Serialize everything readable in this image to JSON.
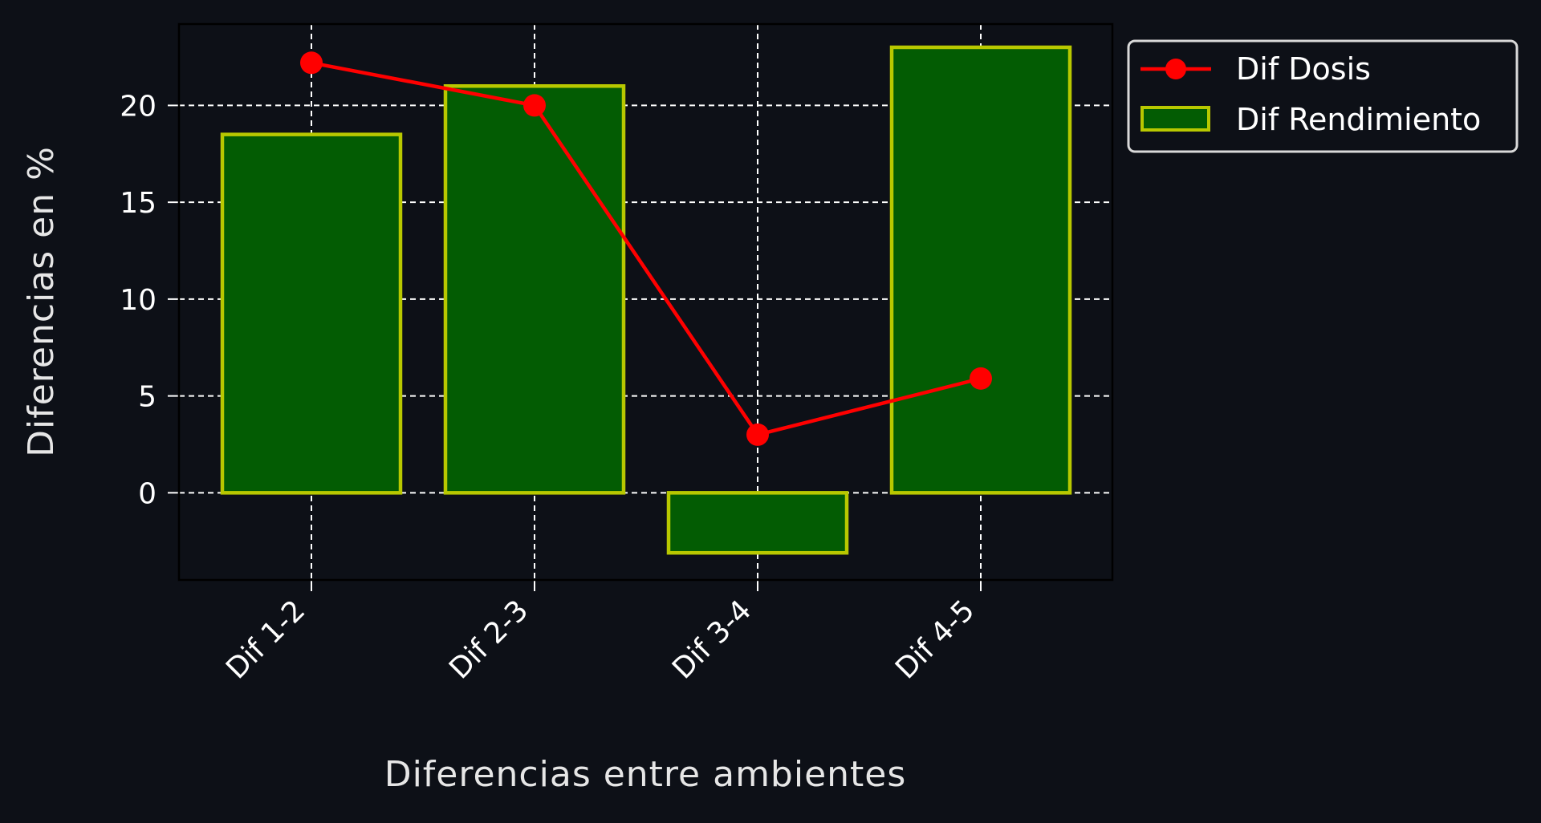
{
  "chart_data": {
    "type": "bar",
    "title": "",
    "xlabel": "Diferencias entre ambientes",
    "ylabel": "Diferencias en %",
    "categories": [
      "Dif 1-2",
      "Dif 2-3",
      "Dif 3-4",
      "Dif 4-5"
    ],
    "series": [
      {
        "name": "Dif Rendimiento",
        "kind": "bar",
        "values": [
          18.5,
          21.0,
          -3.1,
          23.0
        ],
        "fill_color": "#035c03",
        "edge_color": "#b8c800"
      },
      {
        "name": "Dif Dosis",
        "kind": "line",
        "values": [
          22.2,
          20.0,
          3.0,
          5.9
        ],
        "color": "#ff0000",
        "marker": "circle"
      }
    ],
    "ylim": [
      -4.5,
      24.2
    ],
    "yticks": [
      0,
      5,
      10,
      15,
      20
    ],
    "grid": true,
    "legend_position": "outside-top-right",
    "colors": {
      "background": "#0d1017",
      "grid": "#ffffff",
      "text": "#ffffff"
    }
  }
}
